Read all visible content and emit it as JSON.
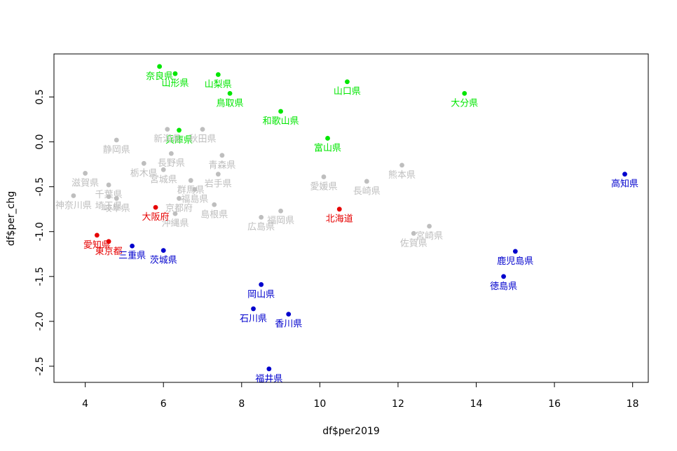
{
  "chart_data": {
    "type": "scatter",
    "xlabel": "df$per2019",
    "ylabel": "df$per_chg",
    "xlim": [
      3.2,
      18.4
    ],
    "ylim": [
      -2.68,
      0.98
    ],
    "xticks": [
      4,
      6,
      8,
      10,
      12,
      14,
      16,
      18
    ],
    "yticks": [
      -2.5,
      -2.0,
      -1.5,
      -1.0,
      -0.5,
      0.0,
      0.5
    ],
    "colors": {
      "green": "#00e600",
      "gray": "#bebebe",
      "red": "#e60000",
      "blue": "#0000cd"
    },
    "points": [
      {
        "name": "奈良県",
        "x": 5.9,
        "y": 0.84,
        "group": "green"
      },
      {
        "name": "山形県",
        "x": 6.3,
        "y": 0.76,
        "group": "green"
      },
      {
        "name": "山梨県",
        "x": 7.4,
        "y": 0.75,
        "group": "green"
      },
      {
        "name": "鳥取県",
        "x": 7.7,
        "y": 0.54,
        "group": "green"
      },
      {
        "name": "山口県",
        "x": 10.7,
        "y": 0.67,
        "group": "green"
      },
      {
        "name": "大分県",
        "x": 13.7,
        "y": 0.54,
        "group": "green"
      },
      {
        "name": "和歌山県",
        "x": 9.0,
        "y": 0.34,
        "group": "green"
      },
      {
        "name": "兵庫県",
        "x": 6.4,
        "y": 0.13,
        "group": "green"
      },
      {
        "name": "富山県",
        "x": 10.2,
        "y": 0.04,
        "group": "green"
      },
      {
        "name": "静岡県",
        "x": 4.8,
        "y": 0.02,
        "group": "gray"
      },
      {
        "name": "新潟県",
        "x": 6.1,
        "y": 0.14,
        "group": "gray"
      },
      {
        "name": "秋田県",
        "x": 7.0,
        "y": 0.14,
        "group": "gray"
      },
      {
        "name": "長野県",
        "x": 6.2,
        "y": -0.13,
        "group": "gray"
      },
      {
        "name": "青森県",
        "x": 7.5,
        "y": -0.15,
        "group": "gray"
      },
      {
        "name": "栃木県",
        "x": 5.5,
        "y": -0.24,
        "group": "gray"
      },
      {
        "name": "宮城県",
        "x": 6.0,
        "y": -0.31,
        "group": "gray"
      },
      {
        "name": "岩手県",
        "x": 7.4,
        "y": -0.36,
        "group": "gray"
      },
      {
        "name": "群馬県",
        "x": 6.7,
        "y": -0.43,
        "group": "gray"
      },
      {
        "name": "福島県",
        "x": 6.8,
        "y": -0.53,
        "group": "gray"
      },
      {
        "name": "滋賀県",
        "x": 4.0,
        "y": -0.35,
        "group": "gray"
      },
      {
        "name": "千葉県",
        "x": 4.6,
        "y": -0.48,
        "group": "gray"
      },
      {
        "name": "埼玉県",
        "x": 4.6,
        "y": -0.61,
        "group": "gray"
      },
      {
        "name": "岐阜県",
        "x": 4.8,
        "y": -0.63,
        "group": "gray"
      },
      {
        "name": "神奈川県",
        "x": 3.7,
        "y": -0.6,
        "group": "gray"
      },
      {
        "name": "京都府",
        "x": 6.4,
        "y": -0.63,
        "group": "gray"
      },
      {
        "name": "島根県",
        "x": 7.3,
        "y": -0.7,
        "group": "gray"
      },
      {
        "name": "沖縄県",
        "x": 6.3,
        "y": -0.8,
        "group": "gray"
      },
      {
        "name": "愛媛県",
        "x": 10.1,
        "y": -0.39,
        "group": "gray"
      },
      {
        "name": "長崎県",
        "x": 11.2,
        "y": -0.44,
        "group": "gray"
      },
      {
        "name": "熊本県",
        "x": 12.1,
        "y": -0.26,
        "group": "gray"
      },
      {
        "name": "広島県",
        "x": 8.5,
        "y": -0.84,
        "group": "gray"
      },
      {
        "name": "福岡県",
        "x": 9.0,
        "y": -0.77,
        "group": "gray"
      },
      {
        "name": "佐賀県",
        "x": 12.4,
        "y": -1.02,
        "group": "gray"
      },
      {
        "name": "宮崎県",
        "x": 12.8,
        "y": -0.94,
        "group": "gray"
      },
      {
        "name": "大阪府",
        "x": 5.8,
        "y": -0.73,
        "group": "red"
      },
      {
        "name": "北海道",
        "x": 10.5,
        "y": -0.75,
        "group": "red"
      },
      {
        "name": "愛知県",
        "x": 4.3,
        "y": -1.04,
        "group": "red"
      },
      {
        "name": "東京都",
        "x": 4.6,
        "y": -1.11,
        "group": "red"
      },
      {
        "name": "三重県",
        "x": 5.2,
        "y": -1.16,
        "group": "blue"
      },
      {
        "name": "茨城県",
        "x": 6.0,
        "y": -1.21,
        "group": "blue"
      },
      {
        "name": "高知県",
        "x": 17.8,
        "y": -0.36,
        "group": "blue"
      },
      {
        "name": "鹿児島県",
        "x": 15.0,
        "y": -1.22,
        "group": "blue"
      },
      {
        "name": "徳島県",
        "x": 14.7,
        "y": -1.5,
        "group": "blue"
      },
      {
        "name": "岡山県",
        "x": 8.5,
        "y": -1.59,
        "group": "blue"
      },
      {
        "name": "石川県",
        "x": 8.3,
        "y": -1.86,
        "group": "blue"
      },
      {
        "name": "香川県",
        "x": 9.2,
        "y": -1.92,
        "group": "blue"
      },
      {
        "name": "福井県",
        "x": 8.7,
        "y": -2.53,
        "group": "blue"
      }
    ]
  }
}
